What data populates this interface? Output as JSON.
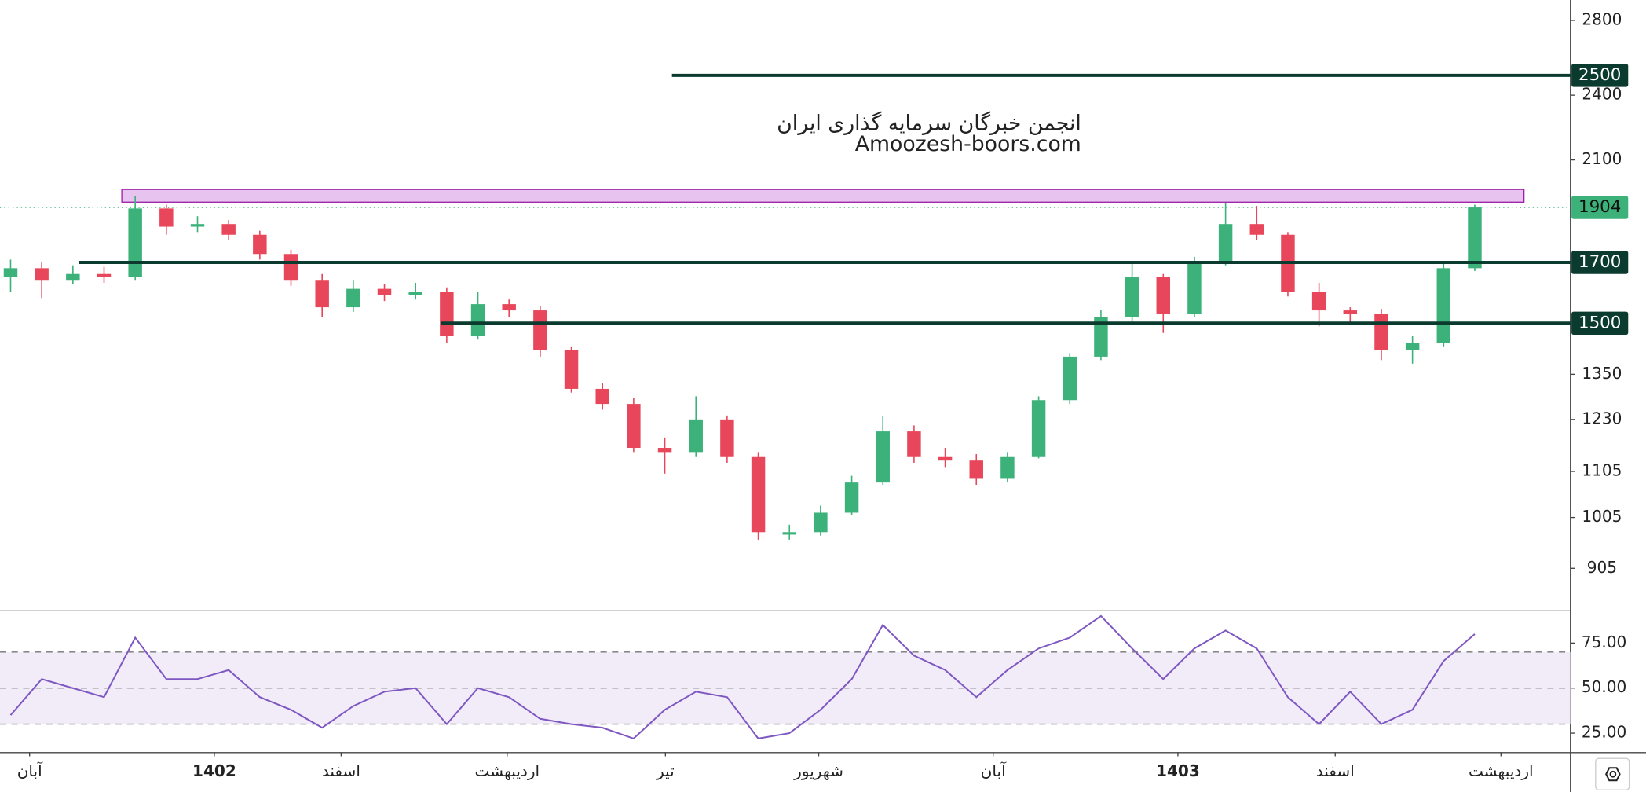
{
  "chart_data": {
    "type": "candlestick",
    "watermark": [
      "انجمن خبرگان سرمایه گذاری ایران",
      "Amoozesh-boors.com"
    ],
    "candles": {
      "open": [
        1650,
        1680,
        1640,
        1660,
        1650,
        1900,
        1830,
        1840,
        1800,
        1730,
        1640,
        1550,
        1610,
        1590,
        1600,
        1460,
        1560,
        1540,
        1420,
        1310,
        1270,
        1160,
        1150,
        1230,
        1140,
        970,
        975,
        1015,
        1080,
        1200,
        1140,
        1130,
        1090,
        1140,
        1280,
        1400,
        1520,
        1650,
        1530,
        1700,
        1840,
        1800,
        1600,
        1540,
        1530,
        1420,
        1440,
        1680
      ],
      "high": [
        1710,
        1700,
        1690,
        1685,
        1950,
        1915,
        1870,
        1855,
        1815,
        1745,
        1660,
        1640,
        1625,
        1630,
        1615,
        1600,
        1575,
        1555,
        1430,
        1325,
        1285,
        1185,
        1290,
        1240,
        1150,
        990,
        1030,
        1095,
        1240,
        1215,
        1160,
        1145,
        1150,
        1290,
        1410,
        1540,
        1700,
        1660,
        1720,
        1920,
        1910,
        1810,
        1630,
        1550,
        1545,
        1460,
        1700,
        1915
      ],
      "low": [
        1600,
        1580,
        1625,
        1630,
        1640,
        1800,
        1810,
        1780,
        1710,
        1620,
        1520,
        1535,
        1570,
        1575,
        1440,
        1450,
        1520,
        1400,
        1300,
        1255,
        1150,
        1100,
        1140,
        1125,
        960,
        960,
        968,
        1010,
        1075,
        1125,
        1115,
        1075,
        1080,
        1135,
        1270,
        1390,
        1505,
        1470,
        1520,
        1690,
        1780,
        1585,
        1490,
        1500,
        1390,
        1380,
        1430,
        1670
      ],
      "close": [
        1680,
        1640,
        1660,
        1650,
        1900,
        1830,
        1840,
        1800,
        1730,
        1640,
        1550,
        1610,
        1590,
        1600,
        1460,
        1560,
        1540,
        1420,
        1310,
        1270,
        1160,
        1150,
        1230,
        1140,
        975,
        975,
        1015,
        1080,
        1200,
        1140,
        1130,
        1090,
        1140,
        1280,
        1400,
        1520,
        1650,
        1530,
        1700,
        1840,
        1800,
        1600,
        1540,
        1530,
        1420,
        1440,
        1680,
        1904
      ]
    },
    "up_color": "#3cb27a",
    "down_color": "#e8475b",
    "log_scale": true,
    "ylim": [
      830,
      2920
    ],
    "yticks": [
      905,
      1005,
      1105,
      1230,
      1350,
      2100,
      2400,
      2800
    ],
    "xlim": [
      -0.34,
      50.07
    ],
    "xticks": [
      {
        "value": 0.61,
        "label": "آبان"
      },
      {
        "value": 6.54,
        "label": "1402"
      },
      {
        "value": 10.61,
        "label": "اسفند"
      },
      {
        "value": 15.94,
        "label": "اردیبهشت"
      },
      {
        "value": 21.02,
        "label": "تیر"
      },
      {
        "value": 25.94,
        "label": "شهریور"
      },
      {
        "value": 31.54,
        "label": "آبان"
      },
      {
        "value": 37.47,
        "label": "1403"
      },
      {
        "value": 42.52,
        "label": "اسفند"
      },
      {
        "value": 47.84,
        "label": "اردیبهشت"
      }
    ],
    "levels": [
      {
        "value": 2500,
        "start": 21.23
      },
      {
        "value": 1700,
        "start": 2.19
      },
      {
        "value": 1500,
        "start": 13.81
      }
    ],
    "level_color": "#0b3b2e",
    "zone": {
      "low": 1925,
      "high": 1976,
      "start": 3.57,
      "end": 48.58,
      "color": "#a020a8"
    },
    "rsi": {
      "values": [
        35,
        55,
        50,
        45,
        78,
        55,
        55,
        60,
        45,
        38,
        28,
        40,
        48,
        50,
        30,
        50,
        45,
        33,
        30,
        28,
        22,
        38,
        48,
        45,
        22,
        25,
        38,
        55,
        85,
        68,
        60,
        45,
        60,
        72,
        78,
        90,
        72,
        55,
        72,
        82,
        72,
        45,
        30,
        48,
        30,
        38,
        65,
        80
      ],
      "color": "#7e57c2",
      "ylim": [
        14.5,
        92
      ],
      "yticks": [
        {
          "value": 25,
          "label": "25.00"
        },
        {
          "value": 50,
          "label": "50.00"
        },
        {
          "value": 75,
          "label": "75.00"
        }
      ],
      "band": [
        30,
        70
      ],
      "guides": [
        30,
        50,
        70
      ]
    }
  }
}
